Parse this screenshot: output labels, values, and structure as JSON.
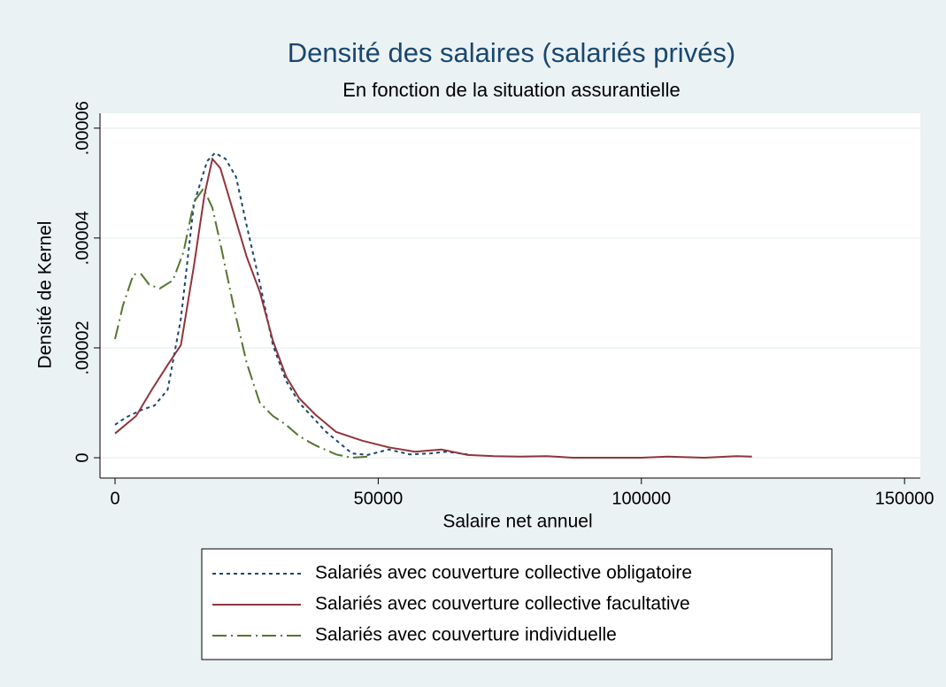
{
  "chart_data": {
    "type": "line",
    "title": "Densité des salaires (salariés privés)",
    "subtitle": "En fonction de la situation assurantielle",
    "x_label": "Salaire net annuel",
    "y_label": "Densité de Kernel",
    "xlim": [
      -2860,
      153000
    ],
    "ylim": [
      -3.7e-06,
      6.27e-05
    ],
    "xticks": [
      0,
      50000,
      100000,
      150000
    ],
    "yticks": [
      0,
      {
        "value": 2e-05,
        "label": ".00002"
      },
      {
        "value": 4e-05,
        "label": ".00004"
      },
      {
        "value": 6e-05,
        "label": ".00006"
      }
    ],
    "grid": true,
    "legend": "bottom",
    "series": [
      {
        "name": "Salariés avec couverture collective obligatoire",
        "color": "#1a476f",
        "style": "dashed",
        "x": [
          0,
          2000,
          5000,
          7500,
          10000,
          12500,
          15000,
          17500,
          19000,
          21000,
          23000,
          25000,
          27500,
          30000,
          32500,
          35000,
          40000,
          45000,
          48000,
          52000,
          56000,
          60000,
          63000,
          67000
        ],
        "values": [
          6e-06,
          7.3e-06,
          8.7e-06,
          9.5e-06,
          1.24e-05,
          2.53e-05,
          4.63e-05,
          5.4e-05,
          5.55e-05,
          5.44e-05,
          5.11e-05,
          4.23e-05,
          3.18e-05,
          2.05e-05,
          1.4e-05,
          1e-05,
          4.8e-06,
          8e-07,
          5e-07,
          1.5e-06,
          6e-07,
          8e-07,
          1.1e-06,
          6e-07
        ]
      },
      {
        "name": "Salariés avec couverture collective facultative",
        "color": "#90353b",
        "style": "solid",
        "x": [
          0,
          4000,
          7000,
          10000,
          12500,
          15000,
          17000,
          18500,
          20000,
          22500,
          25000,
          27500,
          30000,
          32500,
          35000,
          38000,
          42000,
          47000,
          52000,
          57000,
          62000,
          67000,
          72000,
          77000,
          82000,
          87000,
          100000,
          105000,
          112000,
          118000,
          121000
        ],
        "values": [
          4.4e-06,
          7.6e-06,
          1.24e-05,
          1.69e-05,
          2.05e-05,
          3.5e-05,
          4.79e-05,
          5.44e-05,
          5.27e-05,
          4.47e-05,
          3.66e-05,
          3.02e-05,
          2.13e-05,
          1.48e-05,
          1.08e-05,
          7.9e-06,
          4.7e-06,
          3.1e-06,
          1.9e-06,
          1.1e-06,
          1.5e-06,
          5e-07,
          3e-07,
          2e-07,
          3e-07,
          0,
          0,
          2e-07,
          0,
          3e-07,
          2e-07
        ]
      },
      {
        "name": "Salariés avec couverture individuelle",
        "color": "#55752f",
        "style": "dashdot",
        "x": [
          0,
          1500,
          3500,
          5000,
          6500,
          8500,
          11000,
          13000,
          15000,
          16800,
          18500,
          20000,
          22500,
          25000,
          27500,
          30000,
          32500,
          35000,
          38000,
          42000,
          45000,
          48000
        ],
        "values": [
          2.16e-05,
          2.77e-05,
          3.34e-05,
          3.34e-05,
          3.15e-05,
          3.08e-05,
          3.23e-05,
          3.74e-05,
          4.66e-05,
          4.9e-05,
          4.55e-05,
          3.9e-05,
          2.77e-05,
          1.73e-05,
          1e-05,
          7.6e-06,
          6e-06,
          3.9e-06,
          2.3e-06,
          6e-07,
          0,
          2e-07
        ]
      }
    ]
  }
}
